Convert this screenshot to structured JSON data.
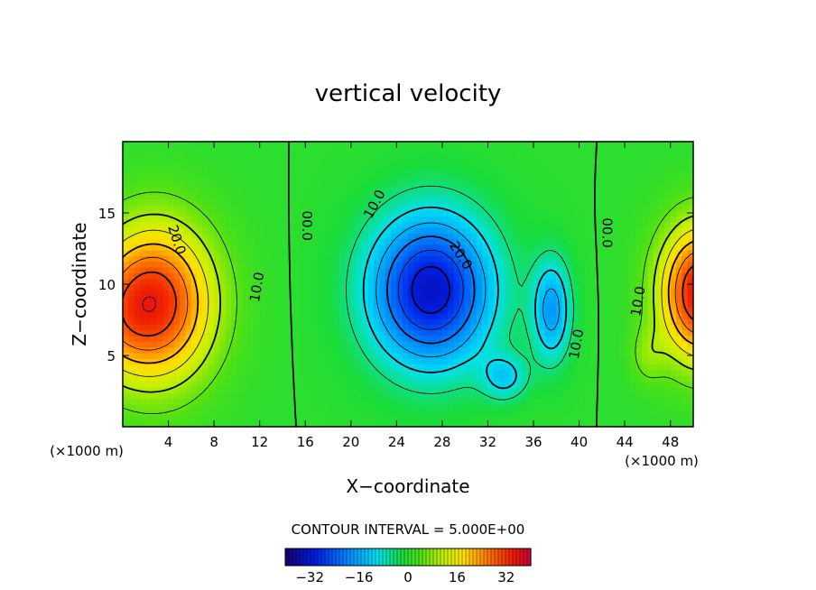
{
  "chart_data": {
    "type": "heatmap",
    "title": "vertical velocity",
    "xlabel": "X−coordinate",
    "ylabel": "Z−coordinate",
    "x_unit_left": "(×1000 m)",
    "x_unit_right": "(×1000 m)",
    "xlim": [
      0,
      50
    ],
    "ylim": [
      0,
      20
    ],
    "x_ticks": [
      4,
      8,
      12,
      16,
      20,
      24,
      28,
      32,
      36,
      40,
      44,
      48
    ],
    "y_ticks": [
      5,
      10,
      15
    ],
    "contour_interval_text": "CONTOUR INTERVAL = 5.000E+00",
    "contour_levels": [
      -30,
      -25,
      -20,
      -15,
      -10,
      -5,
      0,
      5,
      10,
      15,
      20,
      25,
      30,
      35
    ],
    "colorbar": {
      "range": [
        -40,
        40
      ],
      "ticks": [
        -32,
        -16,
        0,
        16,
        32
      ],
      "tick_labels": [
        "−32",
        "−16",
        "0",
        "16",
        "32"
      ]
    },
    "contour_labels": [
      {
        "text": "20.0",
        "x": 4.7,
        "z": 13.1,
        "rotate": 72
      },
      {
        "text": "10.0",
        "x": 11.8,
        "z": 9.8,
        "rotate": -80
      },
      {
        "text": "00.0",
        "x": 16.1,
        "z": 14.1,
        "rotate": 90
      },
      {
        "text": "10.0",
        "x": 22.1,
        "z": 15.6,
        "rotate": -62
      },
      {
        "text": "20.0",
        "x": 29.6,
        "z": 12.0,
        "rotate": 58
      },
      {
        "text": "10.0",
        "x": 39.8,
        "z": 5.8,
        "rotate": -80
      },
      {
        "text": "00.0",
        "x": 42.4,
        "z": 13.6,
        "rotate": 90
      },
      {
        "text": "10.0",
        "x": 45.2,
        "z": 8.8,
        "rotate": -80
      }
    ],
    "field_features": [
      {
        "name": "updraft-left",
        "x": 2.5,
        "z": 8.5,
        "peak": 30
      },
      {
        "name": "downdraft-center",
        "x": 27.0,
        "z": 9.5,
        "peak": -30
      },
      {
        "name": "downdraft-secondary",
        "x": 37.5,
        "z": 8.0,
        "peak": -15
      },
      {
        "name": "updraft-right",
        "x": 50.0,
        "z": 9.0,
        "peak": 30
      }
    ]
  }
}
